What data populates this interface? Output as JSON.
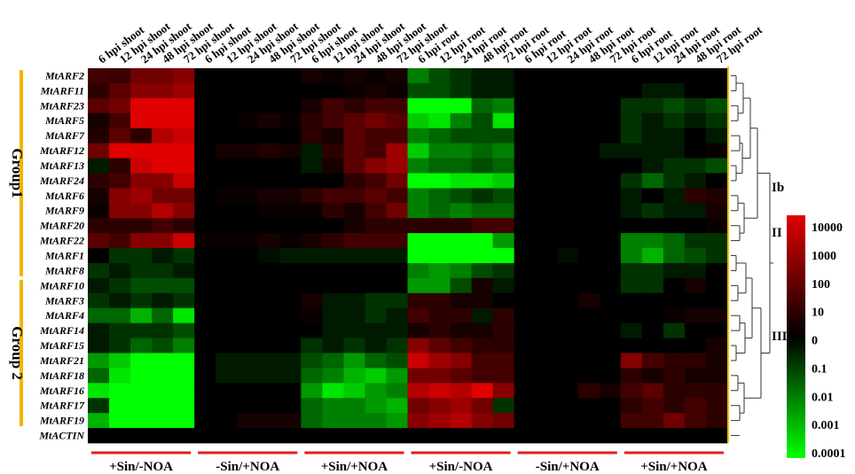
{
  "chart_data": {
    "type": "heatmap",
    "columns": [
      "6 hpi shoot",
      "12 hpi shoot",
      "24 hpi shoot",
      "48 hpi shoot",
      "72 hpi shoot",
      "6 hpi shoot",
      "12 hpi shoot",
      "24 hpi shoot",
      "48 hpi shoot",
      "72 hpi shoot",
      "6 hpi shoot",
      "12 hpi shoot",
      "24 hpi shoot",
      "48 hpi shoot",
      "72 hpi shoot",
      "6 hpi root",
      "12 hpi root",
      "24 hpi root",
      "48 hpi root",
      "72 hpi root",
      "6 hpi root",
      "12 hpi root",
      "24 hpi root",
      "48 hpi root",
      "72 hpi root",
      "6 hpi root",
      "12 hpi root",
      "24 hpi root",
      "48 hpi root",
      "72 hpi root"
    ],
    "rows": [
      "MtARF2",
      "MtARF11",
      "MtARF23",
      "MtARF5",
      "MtARF7",
      "MtARF12",
      "MtARF13",
      "MtARF24",
      "MtARF6",
      "MtARF9",
      "MtARF20",
      "MtARF22",
      "MtARF1",
      "MtARF8",
      "MtARF10",
      "MtARF3",
      "MtARF4",
      "MtARF14",
      "MtARF15",
      "MtARF21",
      "MtARF18",
      "MtARF16",
      "MtARF17",
      "MtARF19",
      "MtACTIN"
    ],
    "conditions": [
      "+Sin/-NOA",
      "-Sin/+NOA",
      "+Sin/+NOA",
      "+Sin/-NOA",
      "-Sin/+NOA",
      "+Sin/+NOA"
    ],
    "groups": [
      {
        "label": "Group1",
        "row_start": 0,
        "row_end": 13
      },
      {
        "label": "Group 2",
        "row_start": 14,
        "row_end": 23
      }
    ],
    "clades": [
      "Ib",
      "II",
      "III"
    ],
    "colorscale": {
      "ticks": [
        "10000",
        "1000",
        "100",
        "10",
        "0",
        "0.1",
        "0.01",
        "0.001",
        "0.0001"
      ],
      "high_color": "#e00000",
      "mid_color": "#000000",
      "low_color": "#00ff00"
    },
    "values": [
      [
        0.3,
        0.25,
        0.5,
        0.5,
        0.6,
        0,
        0,
        0,
        0,
        0,
        0.1,
        0.05,
        0.1,
        0.05,
        0.1,
        -0.5,
        -0.3,
        -0.2,
        -0.1,
        -0.1,
        0,
        0,
        0,
        0,
        0,
        0,
        0,
        0,
        0,
        0
      ],
      [
        0.2,
        0.4,
        0.6,
        0.6,
        0.7,
        0,
        0,
        0,
        0,
        0,
        0,
        0,
        0.05,
        0.1,
        0.05,
        -0.3,
        -0.3,
        -0.2,
        -0.1,
        -0.1,
        0,
        0,
        0,
        0,
        0,
        0,
        -0.1,
        -0.1,
        0,
        0
      ],
      [
        0.4,
        0.5,
        1,
        1,
        1,
        0,
        0,
        0,
        0,
        0,
        0.1,
        0.3,
        0.2,
        0.3,
        0.3,
        -1,
        -1,
        -1,
        -0.4,
        -0.5,
        0,
        0,
        0,
        0,
        0,
        -0.2,
        -0.2,
        -0.3,
        -0.2,
        -0.3
      ],
      [
        0.1,
        0.3,
        1,
        1,
        1,
        0,
        0,
        0.05,
        0.1,
        0.05,
        0.2,
        0.3,
        0.4,
        0.5,
        0.4,
        -0.8,
        -0.9,
        -0.5,
        -0.3,
        -0.9,
        0,
        0,
        0,
        0,
        0,
        -0.2,
        -0.1,
        -0.2,
        -0.1,
        -0.2
      ],
      [
        0.15,
        0.4,
        0.2,
        0.8,
        0.9,
        0,
        0,
        0,
        0,
        0,
        0.2,
        0.1,
        0.4,
        0.3,
        0.3,
        -0.5,
        -0.4,
        -0.3,
        -0.3,
        -0.3,
        0,
        0,
        0,
        0,
        0,
        -0.2,
        -0.1,
        -0.1,
        0,
        -0.1
      ],
      [
        0.5,
        1,
        1,
        1,
        1,
        0,
        0.1,
        0.1,
        0.15,
        0.1,
        -0.1,
        0.2,
        0.4,
        0.3,
        0.7,
        -0.8,
        -0.5,
        -0.5,
        -0.4,
        -0.5,
        0,
        0,
        0,
        0,
        -0.1,
        -0.1,
        -0.1,
        -0.1,
        0,
        0.05
      ],
      [
        -0.1,
        0.2,
        0.9,
        1,
        1,
        0,
        0,
        0,
        0,
        0,
        -0.1,
        0.1,
        0.4,
        0.6,
        0.7,
        -0.5,
        -0.4,
        -0.4,
        -0.3,
        -0.4,
        0,
        0,
        0,
        0,
        0,
        0,
        -0.1,
        -0.2,
        -0.2,
        -0.3
      ],
      [
        0.2,
        0.3,
        0.6,
        0.6,
        0.9,
        0,
        0,
        0,
        0,
        0,
        0,
        0,
        0.2,
        0.3,
        0.5,
        -1,
        -1,
        -0.9,
        -0.9,
        -0.8,
        0,
        0,
        0,
        0,
        0,
        -0.2,
        -0.4,
        -0.2,
        -0.1,
        0
      ],
      [
        0.1,
        0.6,
        0.7,
        0.5,
        0.5,
        0,
        0.05,
        0.05,
        0.1,
        0.1,
        0.2,
        0.3,
        0.3,
        0.4,
        0.3,
        -0.5,
        -0.4,
        -0.3,
        -0.2,
        -0.3,
        0,
        0,
        0,
        0,
        0,
        -0.1,
        0,
        -0.1,
        0.2,
        0.15
      ],
      [
        0.05,
        0.6,
        0.6,
        0.8,
        0.6,
        0,
        0,
        0,
        0.05,
        0.05,
        0.05,
        0.2,
        0.1,
        0.3,
        0.5,
        -0.5,
        -0.4,
        -0.5,
        -0.4,
        -0.4,
        0,
        0,
        0,
        0,
        0,
        -0.1,
        -0.2,
        -0.1,
        -0.1,
        0.1
      ],
      [
        0.2,
        0.2,
        0.2,
        0.3,
        0.2,
        0,
        0,
        0,
        0,
        0,
        0,
        0,
        0.1,
        0.2,
        0.2,
        0.2,
        0.2,
        0.2,
        0.3,
        0.3,
        0,
        0,
        0,
        0,
        0,
        0,
        0,
        0,
        0,
        0.05
      ],
      [
        0.4,
        0.3,
        0.6,
        0.6,
        0.9,
        0.05,
        0.05,
        0.05,
        0.1,
        0.05,
        0.1,
        0.2,
        0.3,
        0.3,
        0.3,
        -1,
        -1,
        -1,
        -1,
        -0.6,
        0,
        0,
        0,
        0,
        0,
        -0.5,
        -0.5,
        -0.4,
        -0.2,
        -0.2
      ],
      [
        0,
        -0.2,
        -0.2,
        -0.1,
        -0.2,
        0,
        0,
        0,
        -0.05,
        -0.1,
        -0.1,
        -0.1,
        -0.1,
        -0.1,
        -0.1,
        -1,
        -1,
        -1,
        -1,
        -1,
        0,
        0,
        -0.05,
        0,
        0,
        -0.5,
        -0.7,
        -0.4,
        -0.3,
        -0.2
      ],
      [
        -0.2,
        -0.1,
        -0.2,
        -0.2,
        -0.1,
        0,
        0,
        0,
        0,
        0,
        0,
        0,
        0,
        0,
        0,
        -0.5,
        -0.6,
        -0.5,
        -0.3,
        -0.2,
        0,
        0,
        0,
        0,
        0,
        -0.2,
        -0.2,
        -0.1,
        -0.1,
        0
      ],
      [
        -0.1,
        -0.2,
        -0.3,
        -0.3,
        -0.3,
        0,
        0,
        0,
        0,
        0,
        0,
        0,
        0,
        0,
        0,
        -0.6,
        -0.6,
        -0.3,
        0.1,
        -0.1,
        0,
        0,
        0,
        0,
        0,
        -0.2,
        -0.2,
        0,
        0.1,
        0
      ],
      [
        -0.2,
        -0.1,
        -0.2,
        -0.1,
        -0.2,
        0,
        0,
        0,
        0,
        0,
        0.1,
        -0.1,
        -0.1,
        -0.2,
        -0.2,
        0.2,
        0.2,
        0.1,
        0.1,
        0,
        0,
        0,
        0,
        0.1,
        0,
        0,
        0,
        0,
        0,
        0
      ],
      [
        -0.4,
        -0.4,
        -0.7,
        -0.4,
        -0.9,
        0,
        0,
        0,
        0,
        0,
        0.05,
        -0.1,
        -0.1,
        -0.2,
        -0.1,
        0.3,
        0.2,
        0.2,
        -0.1,
        0.2,
        0,
        0,
        0,
        0,
        0,
        0,
        0,
        0.05,
        0.1,
        0.1
      ],
      [
        -0.1,
        -0.2,
        -0.2,
        -0.2,
        -0.3,
        0,
        0,
        0,
        0,
        0,
        0,
        -0.1,
        -0.1,
        -0.1,
        -0.1,
        0.1,
        0.2,
        0.1,
        0.1,
        0.2,
        0,
        0,
        0,
        0,
        0,
        -0.1,
        0,
        -0.2,
        0,
        0
      ],
      [
        -0.1,
        -0.2,
        -0.4,
        -0.3,
        -0.5,
        0,
        0,
        0,
        0,
        0,
        -0.2,
        -0.1,
        -0.2,
        -0.1,
        -0.2,
        0.6,
        0.4,
        0.3,
        0.2,
        0.2,
        0,
        0,
        0,
        0,
        0,
        0,
        0,
        0,
        0,
        0.1
      ],
      [
        -0.6,
        -0.8,
        -1,
        -1,
        -1,
        0,
        -0.1,
        -0.1,
        -0.1,
        -0.1,
        -0.3,
        -0.4,
        -0.6,
        -0.4,
        -0.3,
        0.9,
        0.7,
        0.6,
        0.3,
        0.3,
        0,
        0,
        0,
        0,
        0,
        0.6,
        0.3,
        0.2,
        0.2,
        0.1
      ],
      [
        -0.4,
        -0.9,
        -1,
        -1,
        -1,
        0,
        -0.1,
        -0.1,
        -0.1,
        -0.1,
        -0.4,
        -0.5,
        -0.7,
        -0.8,
        -0.6,
        0.5,
        0.5,
        0.4,
        0.3,
        0.3,
        0,
        0,
        0,
        0,
        0,
        0.2,
        0.1,
        0.2,
        0.1,
        0.1
      ],
      [
        -0.9,
        -1,
        -1,
        -1,
        -1,
        0,
        0,
        0,
        0,
        0,
        -0.6,
        -0.9,
        -0.8,
        -0.6,
        -0.5,
        0.8,
        0.9,
        0.8,
        1,
        0.6,
        0,
        0,
        0,
        0.2,
        0.1,
        0.3,
        0.4,
        0.2,
        0.2,
        0.2
      ],
      [
        -0.2,
        -1,
        -1,
        -1,
        -1,
        0,
        0,
        0,
        0,
        0,
        -0.4,
        -0.5,
        -0.5,
        -0.6,
        -0.7,
        0.5,
        0.6,
        0.7,
        0.5,
        -0.2,
        0,
        0,
        0,
        0,
        0,
        0.2,
        0.3,
        0.2,
        0.3,
        0.2
      ],
      [
        -0.7,
        -1,
        -1,
        -1,
        -1,
        0,
        0,
        0.1,
        0.1,
        0.1,
        -0.4,
        -0.5,
        -0.5,
        -0.5,
        -0.6,
        0.6,
        0.7,
        0.8,
        0.6,
        0.5,
        0,
        0,
        0,
        0,
        0,
        0.3,
        0.3,
        0.5,
        0.3,
        0.2
      ],
      [
        0,
        0,
        0,
        0,
        0,
        0,
        0,
        0,
        0,
        0,
        0,
        0,
        0,
        0,
        0,
        0,
        0,
        0,
        0,
        0,
        0,
        0,
        0,
        0,
        0,
        0,
        0,
        0,
        0,
        0
      ]
    ]
  }
}
